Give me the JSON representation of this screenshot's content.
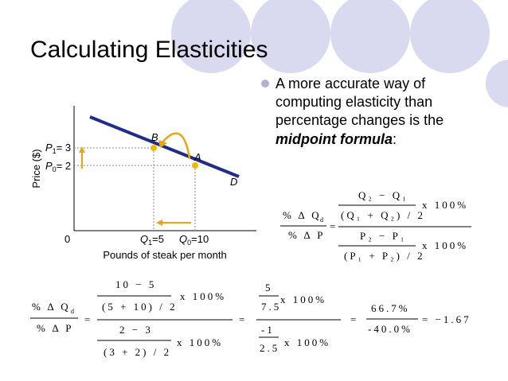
{
  "title": "Calculating Elasticities",
  "bullet": {
    "lines": [
      "A more accurate way of",
      "computing elasticity than",
      "percentage changes is the"
    ],
    "emphasis": "midpoint formula",
    "tail": ":"
  },
  "graph": {
    "y_axis_label": "Price ($)",
    "x_axis_label": "Pounds of steak per month",
    "origin": "0",
    "p1": {
      "symbol": "P",
      "sub": "1",
      "rest": "= 3"
    },
    "p0": {
      "symbol": "P",
      "sub": "0",
      "rest": "= 2"
    },
    "q1": {
      "symbol": "Q",
      "sub": "1",
      "rest": "=5"
    },
    "q0": {
      "symbol": "Q",
      "sub": "0",
      "rest": "=10"
    },
    "point_b": "B",
    "point_a": "A",
    "curve": "D"
  },
  "formula": {
    "lhs_num": "% Δ Q",
    "lhs_sub": "d",
    "lhs_den": "% Δ P",
    "eq": "=",
    "num_num": "Q₂ − Q₁",
    "num_den": "(Q₁ + Q₂) / 2",
    "num_mult": "x 100%",
    "den_num": "P₂ − P₁",
    "den_den": "(P₁ + P₂) / 2",
    "den_mult": "x 100%"
  },
  "calculation": {
    "lhs_num": "% Δ Q",
    "lhs_sub": "d",
    "lhs_den": "% Δ P",
    "eq1": "=",
    "num_num": "10 − 5",
    "num_den": "(5 + 10) / 2",
    "num_mult": "x 100%",
    "den_num": "2 − 3",
    "den_den": "(3 + 2) / 2",
    "den_mult": "x 100%",
    "eq2": "=",
    "s_num_num": "5",
    "s_num_den": "7.5",
    "s_num_mult": "x 100%",
    "s_den_num": "-1",
    "s_den_den": "2.5",
    "s_den_mult": "x 100%",
    "eq3": "=",
    "pct_num": "66.7%",
    "pct_den": "-40.0%",
    "result": "= −1.67"
  }
}
